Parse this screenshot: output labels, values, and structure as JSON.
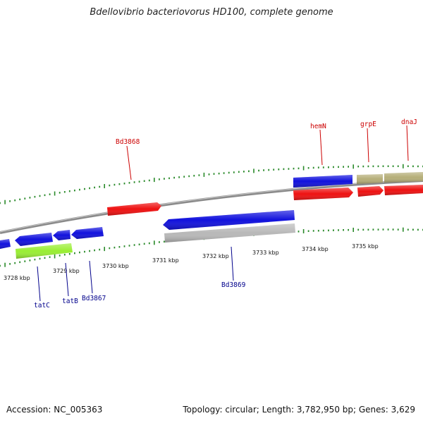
{
  "title": "Bdellovibrio bacteriovorus HD100, complete genome",
  "footer": {
    "accession": "Accession: NC_005363",
    "summary": "Topology: circular; Length: 3,782,950 bp; Genes: 3,629"
  },
  "colors": {
    "backbone": "#888888",
    "tick": "#2a8a2a",
    "forward_label": "#cc0000",
    "reverse_label": "#00008b",
    "gene_red": "#ee1111",
    "gene_blue": "#1111dd",
    "gene_khaki": "#b5ae78",
    "gene_grey": "#b8b8b8",
    "gene_lime": "#99ee33"
  },
  "scale": {
    "labels": [
      "3728 kbp",
      "3729 kbp",
      "3730 kbp",
      "3731 kbp",
      "3732 kbp",
      "3733 kbp",
      "3734 kbp",
      "3735 kbp"
    ]
  },
  "gene_labels": [
    {
      "text": "Bd3868",
      "strand": "forward"
    },
    {
      "text": "hemN",
      "strand": "forward"
    },
    {
      "text": "grpE",
      "strand": "forward"
    },
    {
      "text": "dnaJ",
      "strand": "forward"
    },
    {
      "text": "tatC",
      "strand": "reverse"
    },
    {
      "text": "tatB",
      "strand": "reverse"
    },
    {
      "text": "Bd3867",
      "strand": "reverse"
    },
    {
      "text": "Bd3869",
      "strand": "reverse"
    }
  ]
}
